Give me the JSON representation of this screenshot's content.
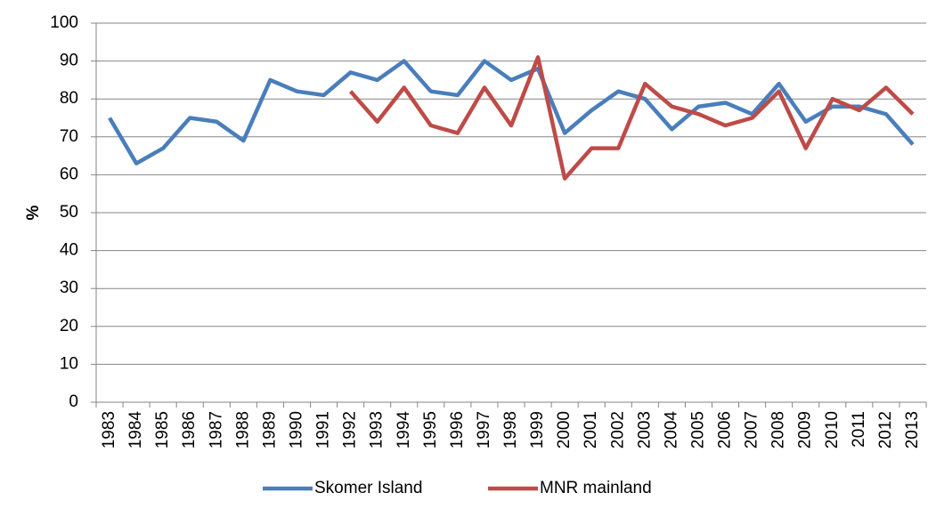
{
  "chart_data": {
    "type": "line",
    "y_label": "%",
    "categories": [
      "1983",
      "1984",
      "1985",
      "1986",
      "1987",
      "1988",
      "1989",
      "1990",
      "1991",
      "1992",
      "1993",
      "1994",
      "1995",
      "1996",
      "1997",
      "1998",
      "1999",
      "2000",
      "2001",
      "2002",
      "2003",
      "2004",
      "2005",
      "2006",
      "2007",
      "2008",
      "2009",
      "2010",
      "2011",
      "2012",
      "2013"
    ],
    "series": [
      {
        "name": "Skomer Island",
        "color": "#4a7ebb",
        "values": [
          75,
          63,
          67,
          75,
          74,
          69,
          85,
          82,
          81,
          87,
          85,
          90,
          82,
          81,
          90,
          85,
          88,
          71,
          77,
          82,
          80,
          72,
          78,
          79,
          76,
          84,
          74,
          78,
          78,
          76,
          68
        ]
      },
      {
        "name": "MNR mainland",
        "color": "#be4b48",
        "values": [
          null,
          null,
          null,
          null,
          null,
          null,
          null,
          null,
          null,
          82,
          74,
          83,
          73,
          71,
          83,
          73,
          91,
          59,
          67,
          67,
          84,
          78,
          76,
          73,
          75,
          82,
          67,
          80,
          77,
          83,
          76
        ]
      }
    ],
    "ylim": [
      0,
      100
    ],
    "yticks": [
      0,
      10,
      20,
      30,
      40,
      50,
      60,
      70,
      80,
      90,
      100
    ],
    "grid": true,
    "legend": "bottom"
  }
}
